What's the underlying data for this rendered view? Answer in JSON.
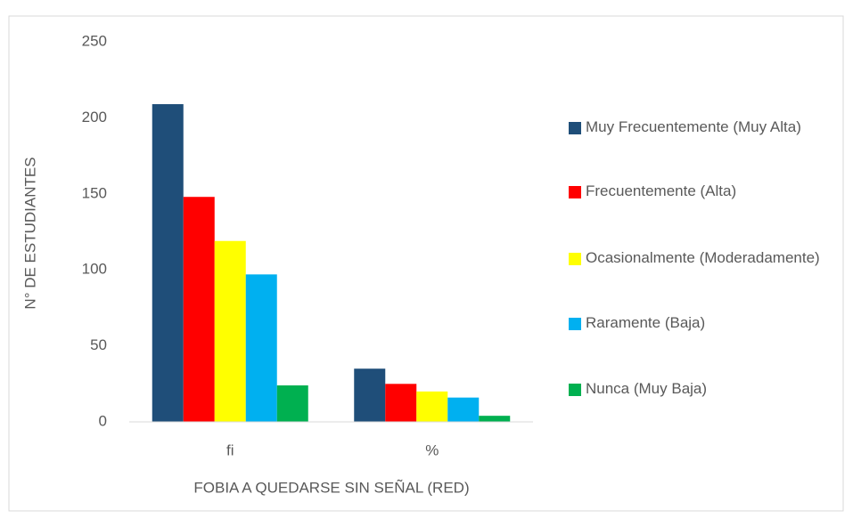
{
  "chart_data": {
    "type": "bar",
    "x_label": "FOBIA A QUEDARSE SIN  SEÑAL (RED)",
    "y_label": "N° DE  ESTUDIANTES",
    "categories": [
      "fi",
      "%"
    ],
    "series": [
      {
        "name": "Muy Frecuentemente (Muy Alta)",
        "color": "#1f4e79",
        "values": [
          209,
          35
        ]
      },
      {
        "name": "Frecuentemente (Alta)",
        "color": "#ff0000",
        "values": [
          148,
          25
        ]
      },
      {
        "name": "Ocasionalmente (Moderadamente)",
        "color": "#ffff00",
        "values": [
          119,
          20
        ]
      },
      {
        "name": "Raramente (Baja)",
        "color": "#00b0f0",
        "values": [
          97,
          16
        ]
      },
      {
        "name": "Nunca (Muy Baja)",
        "color": "#00b050",
        "values": [
          24,
          4
        ]
      }
    ],
    "ylim": [
      0,
      250
    ],
    "yticks": [
      0,
      50,
      100,
      150,
      200,
      250
    ],
    "grid": false,
    "legend": "right"
  }
}
